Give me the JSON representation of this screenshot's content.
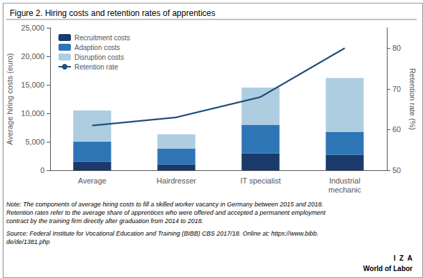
{
  "chart_data": {
    "type": "bar",
    "title": "Figure 2. Hiring costs and retention rates of apprentices",
    "categories": [
      "Average",
      "Hairdresser",
      "IT specialist",
      "Industrial\nmechanic"
    ],
    "series": [
      {
        "name": "Recruitment costs",
        "color": "#1a3a6b",
        "values": [
          1500,
          1000,
          3000,
          2700
        ]
      },
      {
        "name": "Adaption costs",
        "color": "#2e75b6",
        "values": [
          3500,
          2800,
          5000,
          4000
        ]
      },
      {
        "name": "Disruption costs",
        "color": "#aecde1",
        "values": [
          5500,
          2500,
          6500,
          9500
        ]
      },
      {
        "name": "Retention rate",
        "type": "line",
        "axis": "y2",
        "color": "#1f4e79",
        "values": [
          61,
          63,
          68,
          80
        ]
      }
    ],
    "stacked": true,
    "ylabel": "Average hiring costs (euro)",
    "y2label": "Retention rate (%)",
    "ylim": [
      0,
      25000
    ],
    "yticks": [
      0,
      {
        "value": 5000,
        "label": "5,000"
      },
      {
        "value": 10000,
        "label": "10,000"
      },
      {
        "value": 15000,
        "label": "15,000"
      },
      {
        "value": 20000,
        "label": "20,000"
      },
      {
        "value": 25000,
        "label": "25,000"
      }
    ],
    "y2lim": [
      50,
      85
    ],
    "y2ticks": [
      50,
      60,
      70,
      80
    ],
    "grid": false,
    "legend": "upper left",
    "annotations": [
      "Note: The components of average hiring costs to fill a skilled worker vacancy in Germany between 2015 and 2018.\nRetention rates refer to the average share of apprentices who were offered and accepted a permanent employment\ncontract by the training firm directly after graduation from 2014 to 2018.",
      "Source: Federal Institute for Vocational Education and Training (BIBB) CBS 2017/18. Online at: https://www.bibb.\nde/de/1381.php",
      "I  Z  A",
      "World of Labor"
    ]
  }
}
